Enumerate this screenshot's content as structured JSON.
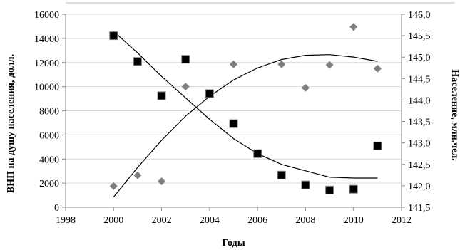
{
  "chart_data": {
    "type": "scatter",
    "title": "",
    "xlabel": "Годы",
    "ylabel_left": "ВНП на душу населения, долл.",
    "ylabel_right": "Население, млн.чел.",
    "xlim": [
      1998,
      2012
    ],
    "ylim_left": [
      0,
      16000
    ],
    "ylim_right": [
      141.5,
      146.0
    ],
    "x_ticks": [
      "1998",
      "2000",
      "2002",
      "2004",
      "2006",
      "2008",
      "2010",
      "2012"
    ],
    "y_left_ticks": [
      "0",
      "2000",
      "4000",
      "6000",
      "8000",
      "10000",
      "12000",
      "14000",
      "16000"
    ],
    "y_right_ticks": [
      "141,5",
      "142,0",
      "142,5",
      "143,0",
      "143,5",
      "144,0",
      "144,5",
      "145,0",
      "145,5",
      "146,0"
    ],
    "grid": "horizontal",
    "legend": "none",
    "series": [
      {
        "axis": "left",
        "marker": "diamond",
        "color": "#7f7f7f",
        "x": [
          2000,
          2001,
          2002,
          2003,
          2005,
          2007,
          2008,
          2009,
          2010,
          2011
        ],
        "y": [
          1750,
          2650,
          2150,
          10000,
          11850,
          11850,
          9900,
          11800,
          14950,
          11500
        ]
      },
      {
        "axis": "right",
        "marker": "square",
        "color": "#000000",
        "x": [
          2000,
          2001,
          2002,
          2003,
          2004,
          2005,
          2006,
          2007,
          2008,
          2009,
          2010,
          2011
        ],
        "y": [
          145.5,
          144.9,
          144.1,
          144.95,
          144.15,
          143.45,
          142.75,
          142.25,
          142.02,
          141.9,
          141.92,
          142.93
        ]
      }
    ],
    "trendlines": [
      {
        "axis": "left",
        "x": [
          2000,
          2001,
          2002,
          2003,
          2004,
          2005,
          2006,
          2007,
          2008,
          2009,
          2010,
          2011
        ],
        "y": [
          850,
          3300,
          5550,
          7550,
          9200,
          10550,
          11550,
          12250,
          12600,
          12650,
          12450,
          12100
        ]
      },
      {
        "axis": "right",
        "x": [
          2000,
          2001,
          2002,
          2003,
          2004,
          2005,
          2006,
          2007,
          2008,
          2009,
          2010,
          2011
        ],
        "y": [
          145.6,
          145.1,
          144.55,
          144.05,
          143.55,
          143.1,
          142.75,
          142.5,
          142.35,
          142.2,
          142.18,
          142.18
        ]
      }
    ]
  }
}
